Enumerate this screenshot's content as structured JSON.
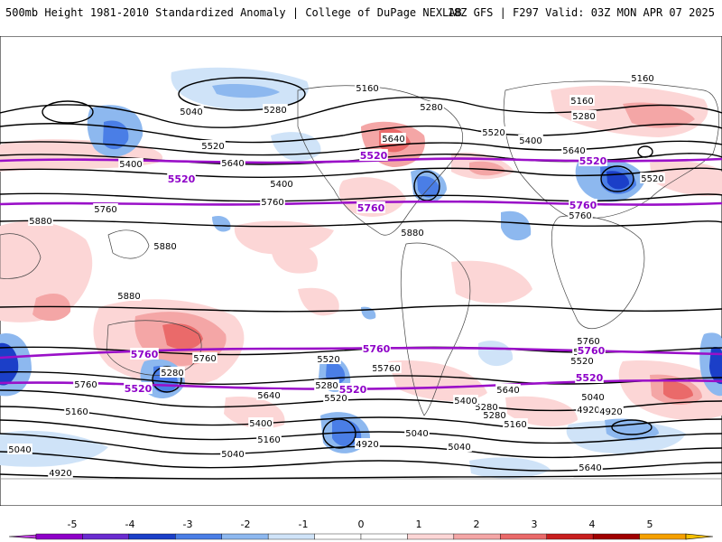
{
  "header": {
    "left": "500mb Height 1981-2010 Standardized Anomaly | College of DuPage NEXLAB",
    "right": "18Z GFS | F297 Valid: 03Z MON APR 07 2025"
  },
  "colors": {
    "pos1": "#fcd6d6",
    "pos2": "#f4a6a6",
    "pos3": "#ea6a6a",
    "neg1": "#cfe3f8",
    "neg2": "#8db8ef",
    "neg3": "#4a7ee6",
    "neg4": "#1b3fc8",
    "purple": "#9a10c8",
    "contour": "#000000"
  },
  "contour_labels": [
    {
      "text": "5160"
    },
    {
      "text": "5160"
    },
    {
      "text": "5160"
    },
    {
      "text": "5040"
    },
    {
      "text": "5280"
    },
    {
      "text": "5280"
    },
    {
      "text": "5280"
    },
    {
      "text": "5520"
    },
    {
      "text": "5520"
    },
    {
      "text": "5640"
    },
    {
      "text": "5400"
    },
    {
      "text": "5400"
    },
    {
      "text": "5400"
    },
    {
      "text": "5640"
    },
    {
      "text": "5640"
    },
    {
      "text": "5520"
    },
    {
      "text": "5760"
    },
    {
      "text": "5760"
    },
    {
      "text": "5760"
    },
    {
      "text": "5880"
    },
    {
      "text": "5880"
    },
    {
      "text": "5880"
    },
    {
      "text": "5880"
    },
    {
      "text": "5760"
    },
    {
      "text": "5640"
    },
    {
      "text": "5760"
    },
    {
      "text": "5280"
    },
    {
      "text": "5520"
    },
    {
      "text": "5040"
    },
    {
      "text": "5160"
    },
    {
      "text": "4920"
    },
    {
      "text": "5040"
    },
    {
      "text": "5160"
    },
    {
      "text": "5400"
    },
    {
      "text": "5280"
    },
    {
      "text": "5520"
    },
    {
      "text": "5760"
    },
    {
      "text": "5280"
    },
    {
      "text": "4920"
    },
    {
      "text": "5040"
    },
    {
      "text": "5040"
    },
    {
      "text": "5160"
    },
    {
      "text": "5280"
    },
    {
      "text": "5400"
    },
    {
      "text": "5640"
    },
    {
      "text": "5760"
    },
    {
      "text": "5520"
    },
    {
      "text": "5040"
    },
    {
      "text": "4920"
    },
    {
      "text": "4920"
    },
    {
      "text": "5640"
    },
    {
      "text": "5760"
    },
    {
      "text": "5520"
    }
  ],
  "purple_labels": [
    {
      "text": "5520"
    },
    {
      "text": "5520"
    },
    {
      "text": "5520"
    },
    {
      "text": "5760"
    },
    {
      "text": "5760"
    },
    {
      "text": "5760"
    },
    {
      "text": "5760"
    },
    {
      "text": "5760"
    },
    {
      "text": "5520"
    },
    {
      "text": "5520"
    },
    {
      "text": "5520"
    }
  ],
  "colorbar": {
    "ticks": [
      "-5",
      "-4",
      "-3",
      "-2",
      "-1",
      "0",
      "1",
      "2",
      "3",
      "4",
      "5"
    ],
    "colors": [
      "#8e00c8",
      "#6a2bd0",
      "#1b3fc8",
      "#4a7ee6",
      "#8db8ef",
      "#cfe3f8",
      "#ffffff",
      "#ffffff",
      "#fcd6d6",
      "#f4a6a6",
      "#ea6a6a",
      "#c81e1e",
      "#a00000",
      "#f5a000"
    ]
  }
}
